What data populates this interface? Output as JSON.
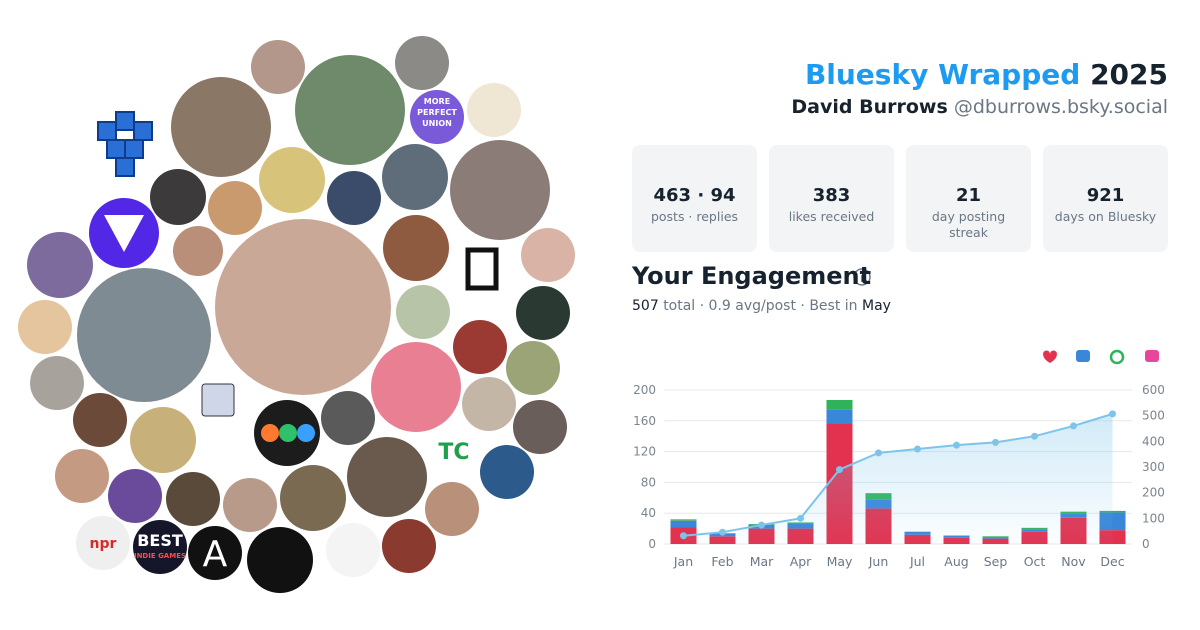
{
  "header": {
    "title": "Bluesky Wrapped",
    "year": "2025",
    "name": "David Burrows",
    "handle": "@dburrows.bsky.social"
  },
  "stats": [
    {
      "value": "463 · 94",
      "label": "posts · replies"
    },
    {
      "value": "383",
      "label": "likes received"
    },
    {
      "value": "21",
      "label": "day posting streak"
    },
    {
      "value": "921",
      "label": "days on Bluesky"
    }
  ],
  "engagement": {
    "heading": "Your Engagement",
    "total": "507",
    "middle": "total · 0.9 avg/post · Best in",
    "best": "May"
  },
  "collage": {
    "logos": [
      "MORE",
      "PERFECT",
      "UNION",
      "npr",
      "BEST",
      "INDIE GAMES",
      "A",
      "TC"
    ]
  },
  "chart_data": {
    "type": "bar",
    "categories": [
      "Jan",
      "Feb",
      "Mar",
      "Apr",
      "May",
      "Jun",
      "Jul",
      "Aug",
      "Sep",
      "Oct",
      "Nov",
      "Dec"
    ],
    "series": [
      {
        "color": "#e3324f",
        "values": [
          22,
          10,
          20,
          20,
          157,
          46,
          12,
          8,
          7,
          16,
          34,
          18
        ]
      },
      {
        "color": "#3a86d8",
        "values": [
          8,
          3,
          5,
          6,
          18,
          12,
          4,
          3,
          2,
          3,
          6,
          23
        ]
      },
      {
        "color": "#2fb35a",
        "values": [
          1,
          1,
          1,
          2,
          12,
          8,
          0,
          0,
          1,
          2,
          2,
          2
        ]
      },
      {
        "color": "#e6479c",
        "values": [
          1,
          0,
          0,
          0,
          0,
          0,
          0,
          0,
          0,
          0,
          0,
          0
        ]
      },
      {
        "color": "#7cc4ea",
        "axis": "y2",
        "values": [
          32,
          46,
          74,
          100,
          290,
          355,
          370,
          385,
          396,
          420,
          460,
          507
        ]
      }
    ],
    "ylim": [
      0,
      200
    ],
    "yticks": [
      0,
      40,
      80,
      120,
      160,
      200
    ],
    "y2lim": [
      0,
      600
    ],
    "y2ticks": [
      0,
      100,
      200,
      300,
      400,
      500,
      600
    ],
    "grid": true
  }
}
